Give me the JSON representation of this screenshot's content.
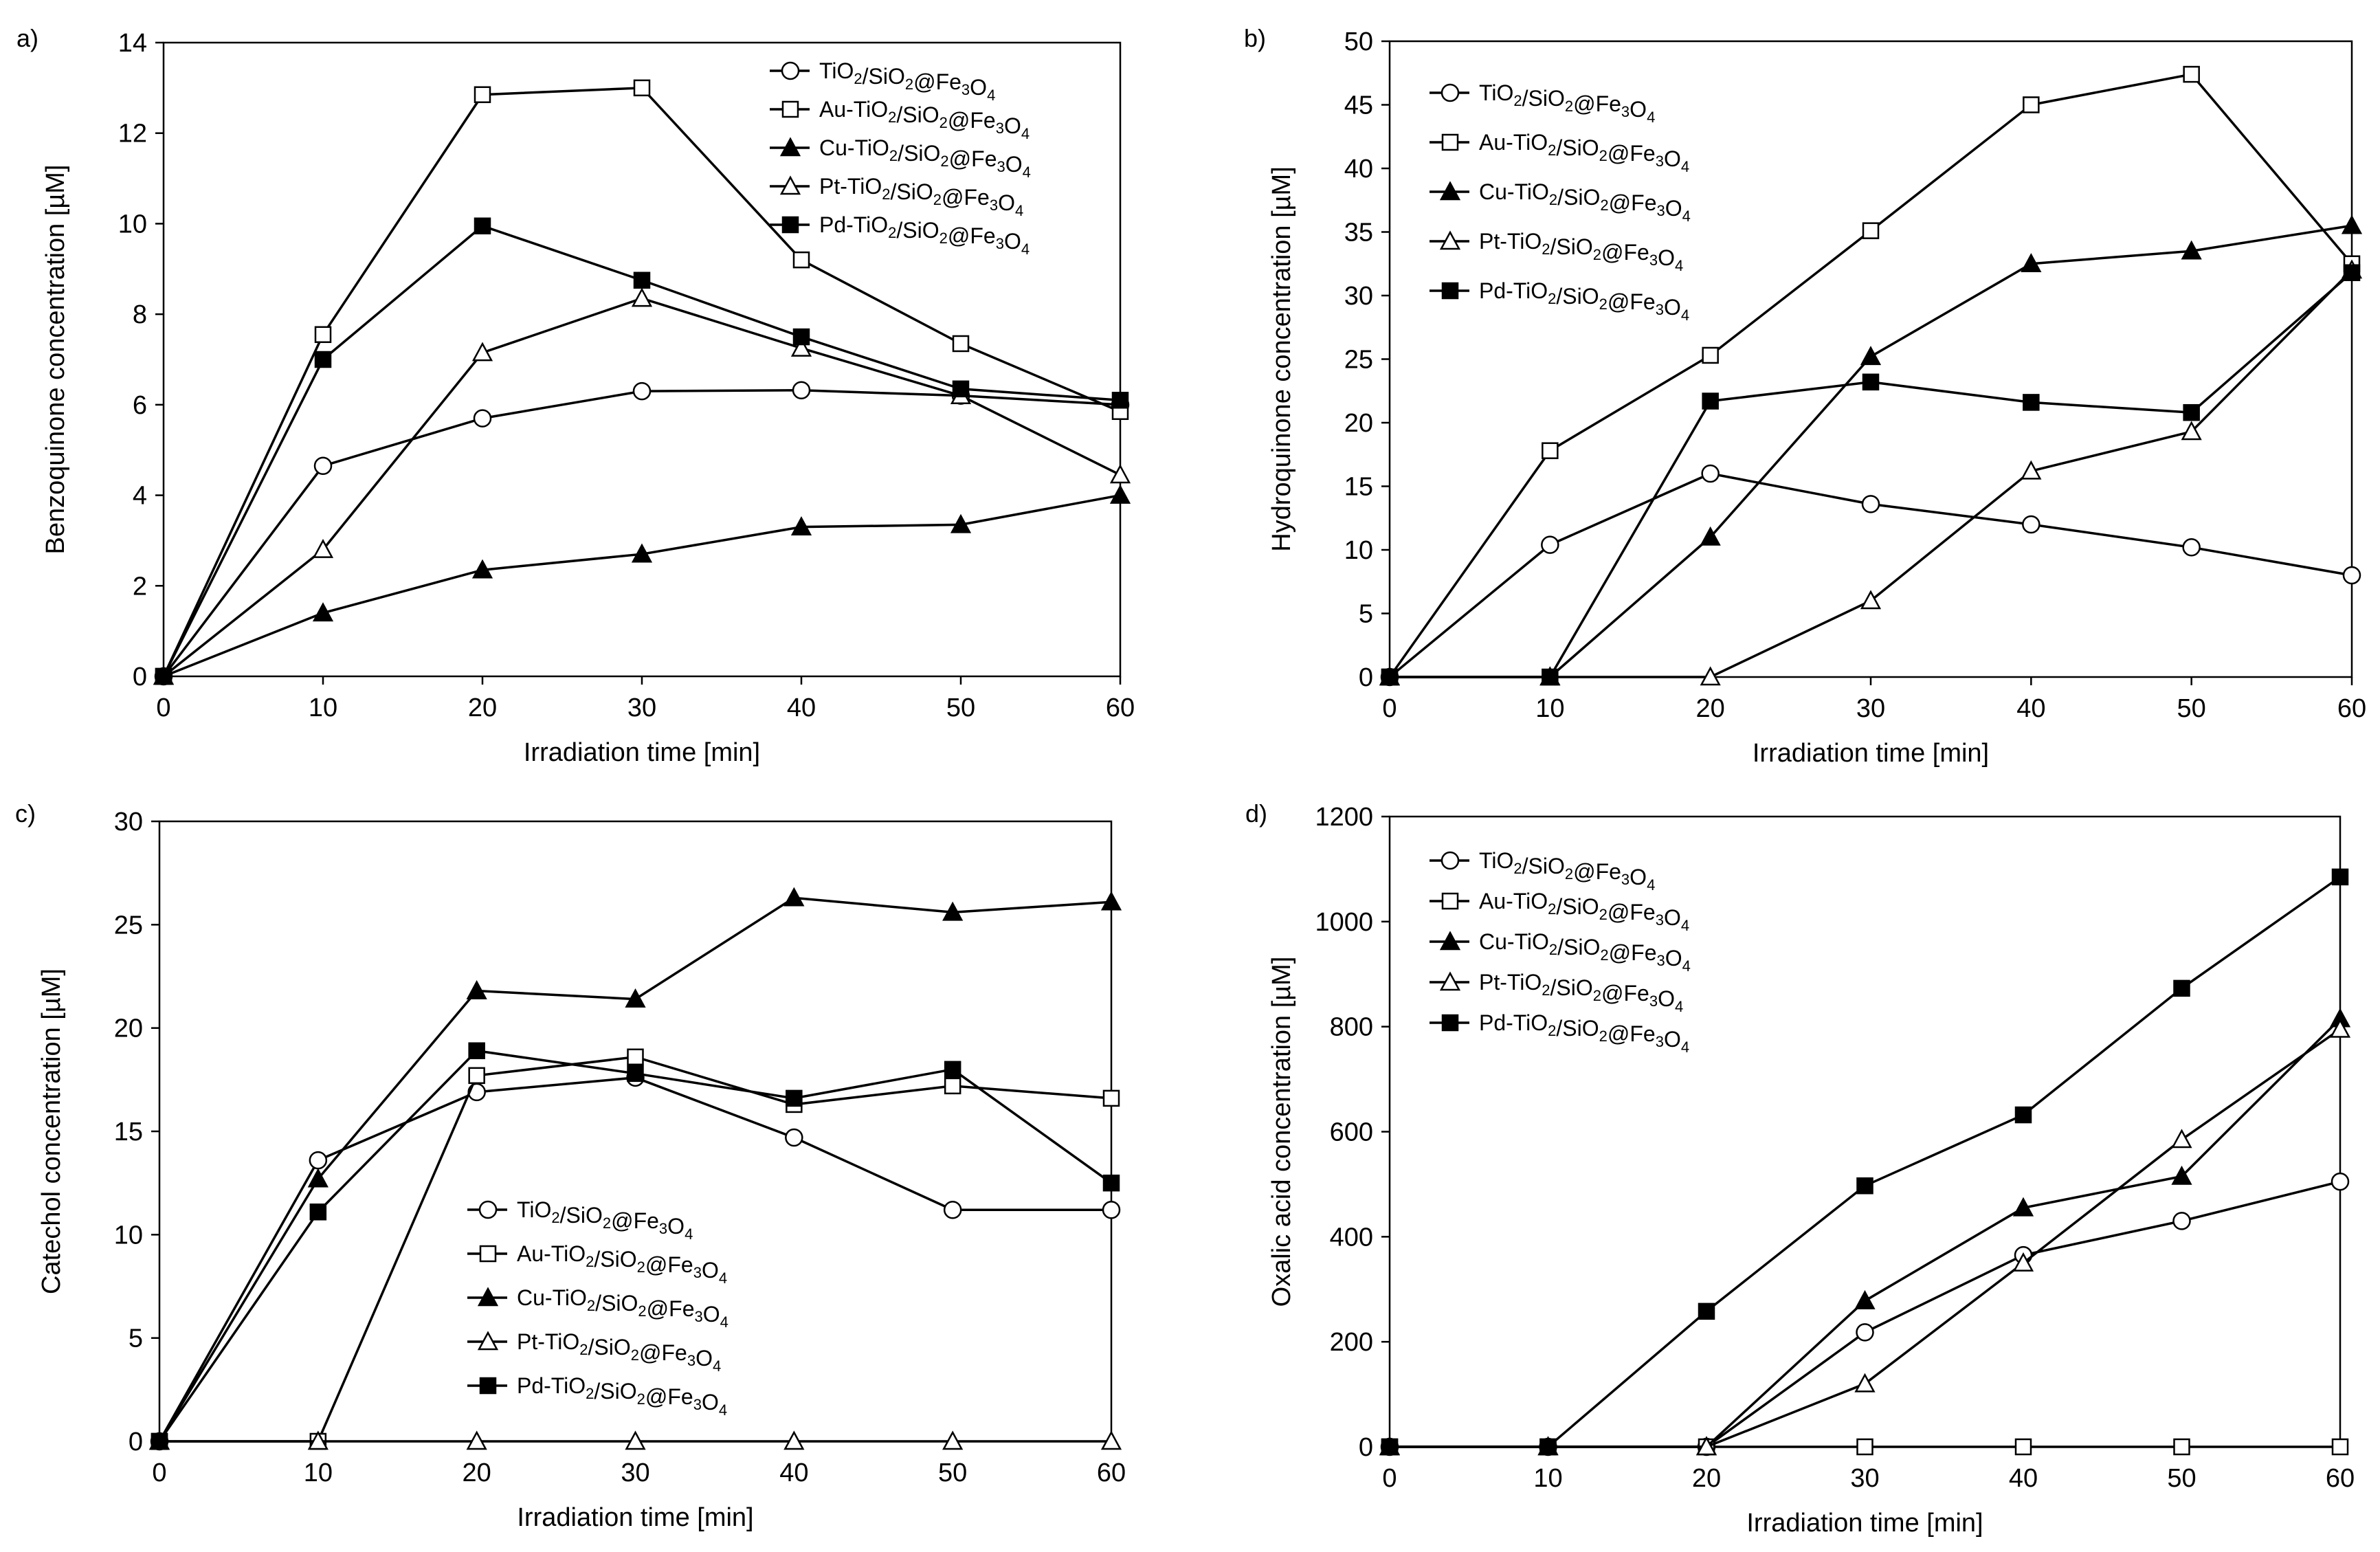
{
  "figure": {
    "description_free": true
  },
  "chart_data": [
    {
      "type": "line",
      "panel_label": "a)",
      "xlabel": "Irradiation time [min]",
      "ylabel": "Benzoquinone  concentration [µM]",
      "x": [
        0,
        10,
        20,
        30,
        40,
        50,
        60
      ],
      "xlim": [
        0,
        60
      ],
      "ylim": [
        0,
        14
      ],
      "xticks": [
        0,
        10,
        20,
        30,
        40,
        50,
        60
      ],
      "yticks": [
        0,
        2,
        4,
        6,
        8,
        10,
        12,
        14
      ],
      "grid": false,
      "legend_position": "top-right",
      "series": [
        {
          "name": "TiO2/SiO2@Fe3O4",
          "marker": "circle-open",
          "values": [
            0,
            4.65,
            5.7,
            6.3,
            6.32,
            6.2,
            6.0
          ]
        },
        {
          "name": "Au-TiO2/SiO2@Fe3O4",
          "marker": "square-open",
          "values": [
            0,
            7.55,
            12.85,
            13.0,
            9.2,
            7.35,
            5.85
          ]
        },
        {
          "name": "Cu-TiO2/SiO2@Fe3O4",
          "marker": "triangle-filled",
          "values": [
            0,
            1.4,
            2.35,
            2.7,
            3.3,
            3.35,
            4.0
          ]
        },
        {
          "name": "Pt-TiO2/SiO2@Fe3O4",
          "marker": "triangle-open",
          "values": [
            0,
            2.8,
            7.15,
            8.35,
            7.25,
            6.2,
            4.45
          ]
        },
        {
          "name": "Pd-TiO2/SiO2@Fe3O4",
          "marker": "square-filled",
          "values": [
            0,
            7.0,
            9.95,
            8.75,
            7.5,
            6.35,
            6.1
          ]
        }
      ]
    },
    {
      "type": "line",
      "panel_label": "b)",
      "xlabel": "Irradiation time [min]",
      "ylabel": "Hydroquinone  concentration [µM]",
      "x": [
        0,
        10,
        20,
        30,
        40,
        50,
        60
      ],
      "xlim": [
        0,
        60
      ],
      "ylim": [
        0,
        50
      ],
      "xticks": [
        0,
        10,
        20,
        30,
        40,
        50,
        60
      ],
      "yticks": [
        0,
        5,
        10,
        15,
        20,
        25,
        30,
        35,
        40,
        45,
        50
      ],
      "grid": false,
      "legend_position": "top-left",
      "series": [
        {
          "name": "TiO2/SiO2@Fe3O4",
          "marker": "circle-open",
          "values": [
            0,
            10.4,
            16.0,
            13.6,
            12.0,
            10.2,
            8.0
          ]
        },
        {
          "name": "Au-TiO2/SiO2@Fe3O4",
          "marker": "square-open",
          "values": [
            0,
            17.8,
            25.3,
            35.1,
            45.0,
            47.4,
            32.5
          ]
        },
        {
          "name": "Cu-TiO2/SiO2@Fe3O4",
          "marker": "triangle-filled",
          "values": [
            0,
            0,
            11.0,
            25.2,
            32.5,
            33.5,
            35.5
          ]
        },
        {
          "name": "Pt-TiO2/SiO2@Fe3O4",
          "marker": "triangle-open",
          "values": [
            0,
            0,
            0,
            6.0,
            16.2,
            19.3,
            32.0
          ]
        },
        {
          "name": "Pd-TiO2/SiO2@Fe3O4",
          "marker": "square-filled",
          "values": [
            0,
            0,
            21.7,
            23.2,
            21.6,
            20.8,
            31.8
          ]
        }
      ]
    },
    {
      "type": "line",
      "panel_label": "c)",
      "xlabel": "Irradiation time [min]",
      "ylabel": "Catechol concentration [µM]",
      "x": [
        0,
        10,
        20,
        30,
        40,
        50,
        60
      ],
      "xlim": [
        0,
        60
      ],
      "ylim": [
        0,
        30
      ],
      "xticks": [
        0,
        10,
        20,
        30,
        40,
        50,
        60
      ],
      "yticks": [
        0,
        5,
        10,
        15,
        20,
        25,
        30
      ],
      "grid": false,
      "legend_position": "lower-center",
      "series": [
        {
          "name": "TiO2/SiO2@Fe3O4",
          "marker": "circle-open",
          "values": [
            0,
            13.6,
            16.9,
            17.6,
            14.7,
            11.2,
            11.2
          ]
        },
        {
          "name": "Au-TiO2/SiO2@Fe3O4",
          "marker": "square-open",
          "values": [
            0,
            0,
            17.7,
            18.6,
            16.3,
            17.2,
            16.6
          ]
        },
        {
          "name": "Cu-TiO2/SiO2@Fe3O4",
          "marker": "triangle-filled",
          "values": [
            0,
            12.7,
            21.8,
            21.4,
            26.3,
            25.6,
            26.1
          ]
        },
        {
          "name": "Pt-TiO2/SiO2@Fe3O4",
          "marker": "triangle-open",
          "values": [
            0,
            0,
            0,
            0,
            0,
            0,
            0
          ]
        },
        {
          "name": "Pd-TiO2/SiO2@Fe3O4",
          "marker": "square-filled",
          "values": [
            0,
            11.1,
            18.9,
            17.8,
            16.6,
            18.0,
            12.5
          ]
        }
      ]
    },
    {
      "type": "line",
      "panel_label": "d)",
      "xlabel": "Irradiation time [min]",
      "ylabel": "Oxalic acid concentration [µM]",
      "x": [
        0,
        10,
        20,
        30,
        40,
        50,
        60
      ],
      "xlim": [
        0,
        60
      ],
      "ylim": [
        0,
        1200
      ],
      "xticks": [
        0,
        10,
        20,
        30,
        40,
        50,
        60
      ],
      "yticks": [
        0,
        200,
        400,
        600,
        800,
        1000,
        1200
      ],
      "grid": false,
      "legend_position": "top-left",
      "series": [
        {
          "name": "TiO2/SiO2@Fe3O4",
          "marker": "circle-open",
          "values": [
            0,
            0,
            0,
            218,
            365,
            430,
            505
          ]
        },
        {
          "name": "Au-TiO2/SiO2@Fe3O4",
          "marker": "square-open",
          "values": [
            0,
            0,
            0,
            0,
            0,
            0,
            0
          ]
        },
        {
          "name": "Cu-TiO2/SiO2@Fe3O4",
          "marker": "triangle-filled",
          "values": [
            0,
            0,
            0,
            278,
            455,
            515,
            815
          ]
        },
        {
          "name": "Pt-TiO2/SiO2@Fe3O4",
          "marker": "triangle-open",
          "values": [
            0,
            0,
            0,
            120,
            350,
            585,
            795
          ]
        },
        {
          "name": "Pd-TiO2/SiO2@Fe3O4",
          "marker": "square-filled",
          "values": [
            0,
            0,
            258,
            497,
            632,
            873,
            1085
          ]
        }
      ]
    }
  ]
}
